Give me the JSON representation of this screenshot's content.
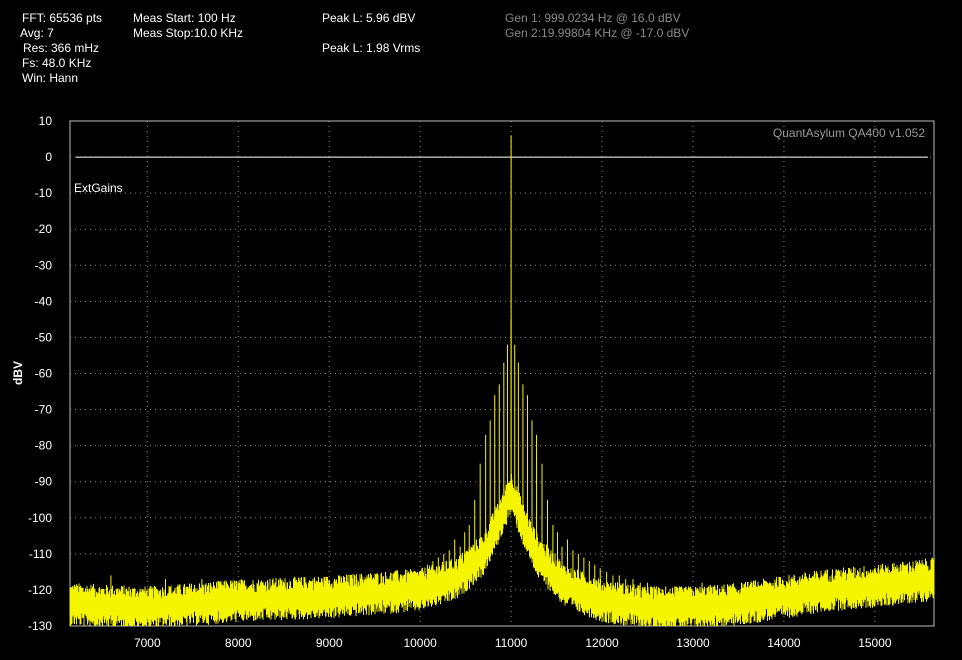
{
  "info": {
    "fft": "FFT: 65536 pts",
    "avg": "Avg: 7",
    "res": "Res: 366 mHz",
    "fs": "Fs: 48.0 KHz",
    "win": "Win: Hann",
    "meas_start": "Meas Start: 100 Hz",
    "meas_stop": "Meas Stop:10.0 KHz",
    "peak_dbv": "Peak L: 5.96 dBV",
    "peak_vrms": "Peak L: 1.98 Vrms",
    "gen1": "Gen 1: 999.0234 Hz @ 16.0  dBV",
    "gen2": "Gen 2:19.99804 KHz @ -17.0  dBV"
  },
  "watermark": "QuantAsylum QA400 v1.052",
  "annotation": "ExtGains",
  "colors": {
    "trace": "#f5f500",
    "background": "#000000",
    "grid": "#8a8a8a",
    "reference_line": "#ffffff"
  },
  "chart_data": {
    "type": "line",
    "title": "",
    "xlabel": "",
    "ylabel": "dBV",
    "xlim": [
      6150,
      15650
    ],
    "ylim": [
      -130,
      10
    ],
    "x_ticks": [
      7000,
      8000,
      9000,
      10000,
      11000,
      12000,
      13000,
      14000,
      15000
    ],
    "y_ticks": [
      10,
      0,
      -10,
      -20,
      -30,
      -40,
      -50,
      -60,
      -70,
      -80,
      -90,
      -100,
      -110,
      -120,
      -130
    ],
    "grid": true,
    "reference_line_y": 0,
    "series": [
      {
        "noise_floor": [
          [
            6150,
            -124
          ],
          [
            7000,
            -125
          ],
          [
            8000,
            -123
          ],
          [
            9000,
            -122
          ],
          [
            10000,
            -120
          ],
          [
            10400,
            -117
          ],
          [
            10700,
            -110
          ],
          [
            10850,
            -102
          ],
          [
            10950,
            -96
          ],
          [
            11000,
            -93
          ],
          [
            11050,
            -96
          ],
          [
            11150,
            -103
          ],
          [
            11300,
            -111
          ],
          [
            11600,
            -119
          ],
          [
            12000,
            -123
          ],
          [
            12500,
            -125
          ],
          [
            13000,
            -125
          ],
          [
            13500,
            -124
          ],
          [
            14000,
            -122
          ],
          [
            14500,
            -120
          ],
          [
            15000,
            -119
          ],
          [
            15650,
            -117
          ]
        ],
        "peaks": [
          {
            "x": 11000,
            "y": 6
          },
          {
            "x": 11000,
            "y": -45
          },
          {
            "x": 10960,
            "y": -52
          },
          {
            "x": 11040,
            "y": -52
          },
          {
            "x": 10920,
            "y": -57
          },
          {
            "x": 11080,
            "y": -57
          },
          {
            "x": 10870,
            "y": -63
          },
          {
            "x": 11130,
            "y": -63
          },
          {
            "x": 10820,
            "y": -66
          },
          {
            "x": 11180,
            "y": -66
          },
          {
            "x": 10770,
            "y": -73
          },
          {
            "x": 11230,
            "y": -73
          },
          {
            "x": 10720,
            "y": -77
          },
          {
            "x": 11280,
            "y": -77
          },
          {
            "x": 10660,
            "y": -85
          },
          {
            "x": 11340,
            "y": -85
          },
          {
            "x": 10600,
            "y": -95
          },
          {
            "x": 11400,
            "y": -95
          },
          {
            "x": 10540,
            "y": -102
          },
          {
            "x": 11460,
            "y": -102
          },
          {
            "x": 10490,
            "y": -104
          },
          {
            "x": 11510,
            "y": -104
          },
          {
            "x": 10440,
            "y": -108
          },
          {
            "x": 11560,
            "y": -108
          },
          {
            "x": 10380,
            "y": -106
          },
          {
            "x": 11620,
            "y": -106
          },
          {
            "x": 10320,
            "y": -109
          },
          {
            "x": 11680,
            "y": -109
          },
          {
            "x": 10260,
            "y": -110
          },
          {
            "x": 11740,
            "y": -110
          },
          {
            "x": 10200,
            "y": -111
          },
          {
            "x": 11800,
            "y": -111
          },
          {
            "x": 10140,
            "y": -112
          },
          {
            "x": 11860,
            "y": -112
          },
          {
            "x": 10080,
            "y": -113
          },
          {
            "x": 11920,
            "y": -113
          },
          {
            "x": 10020,
            "y": -114
          },
          {
            "x": 11980,
            "y": -114
          },
          {
            "x": 9950,
            "y": -115
          },
          {
            "x": 12050,
            "y": -115
          },
          {
            "x": 9880,
            "y": -116
          },
          {
            "x": 12120,
            "y": -116
          },
          {
            "x": 9810,
            "y": -116
          },
          {
            "x": 12190,
            "y": -116
          },
          {
            "x": 9740,
            "y": -117
          },
          {
            "x": 12260,
            "y": -117
          },
          {
            "x": 9660,
            "y": -117
          },
          {
            "x": 12340,
            "y": -117
          },
          {
            "x": 9580,
            "y": -118
          },
          {
            "x": 12420,
            "y": -118
          },
          {
            "x": 9500,
            "y": -118
          },
          {
            "x": 12500,
            "y": -118
          },
          {
            "x": 9400,
            "y": -119
          },
          {
            "x": 12600,
            "y": -119
          },
          {
            "x": 9300,
            "y": -119
          },
          {
            "x": 12700,
            "y": -119
          },
          {
            "x": 9200,
            "y": -119
          },
          {
            "x": 12800,
            "y": -119
          },
          {
            "x": 9050,
            "y": -119
          },
          {
            "x": 12950,
            "y": -119
          },
          {
            "x": 8900,
            "y": -118
          },
          {
            "x": 13100,
            "y": -118
          },
          {
            "x": 8300,
            "y": -118
          },
          {
            "x": 6600,
            "y": -116
          },
          {
            "x": 7200,
            "y": -117
          },
          {
            "x": 7600,
            "y": -117
          },
          {
            "x": 13800,
            "y": -119
          },
          {
            "x": 14300,
            "y": -119
          },
          {
            "x": 15400,
            "y": -115
          }
        ]
      }
    ]
  }
}
